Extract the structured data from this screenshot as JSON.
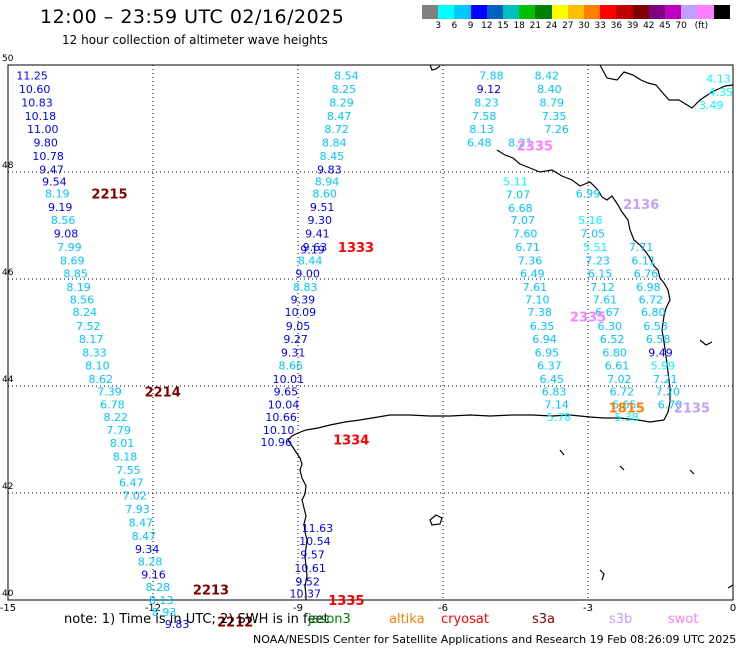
{
  "header": {
    "title": "12:00 – 23:59 UTC 02/16/2025",
    "subtitle": "12 hour collection of altimeter wave heights"
  },
  "colorbar": {
    "colors": [
      "#808080",
      "#00ffff",
      "#00c8ff",
      "#0000ff",
      "#0060c0",
      "#00c0c0",
      "#00c000",
      "#008000",
      "#ffff00",
      "#ffc000",
      "#ff8000",
      "#ff0000",
      "#c00000",
      "#800000",
      "#800080",
      "#c000c0",
      "#c0a0ff",
      "#ff80ff",
      "#000000"
    ],
    "labels": [
      "3",
      "6",
      "9",
      "12",
      "15",
      "18",
      "21",
      "24",
      "27",
      "30",
      "33",
      "36",
      "39",
      "42",
      "45",
      "70",
      "(ft)"
    ]
  },
  "axes": {
    "x_ticks": [
      "-15",
      "-12",
      "-9",
      "-6",
      "-3",
      "0"
    ],
    "y_ticks": [
      "50",
      "48",
      "46",
      "44",
      "42",
      "40"
    ]
  },
  "chart_data": {
    "type": "scatter",
    "x_range_lon": [
      -15,
      0
    ],
    "y_range_lat": [
      40,
      50
    ],
    "units": "ft",
    "grid": true,
    "tracks": [
      {
        "pass_id": "2215",
        "points": [
          {
            "lon": -14.5,
            "lat": 49.8,
            "v": "11.25"
          },
          {
            "lon": -14.45,
            "lat": 49.55,
            "v": "10.60"
          },
          {
            "lon": -14.4,
            "lat": 49.3,
            "v": "10.83"
          },
          {
            "lon": -14.33,
            "lat": 49.05,
            "v": "10.18"
          },
          {
            "lon": -14.28,
            "lat": 48.8,
            "v": "11.00"
          },
          {
            "lon": -14.22,
            "lat": 48.55,
            "v": "9.80"
          },
          {
            "lon": -14.17,
            "lat": 48.3,
            "v": "10.78"
          },
          {
            "lon": -14.1,
            "lat": 48.05,
            "v": "9.47"
          },
          {
            "lon": -14.04,
            "lat": 47.82,
            "v": "9.54"
          },
          {
            "lon": -13.98,
            "lat": 47.6,
            "v": "8.19"
          },
          {
            "lon": -13.92,
            "lat": 47.35,
            "v": "9.19"
          },
          {
            "lon": -13.86,
            "lat": 47.1,
            "v": "8.56"
          },
          {
            "lon": -13.8,
            "lat": 46.85,
            "v": "9.08"
          },
          {
            "lon": -13.73,
            "lat": 46.6,
            "v": "7.99"
          },
          {
            "lon": -13.67,
            "lat": 46.35,
            "v": "8.69"
          },
          {
            "lon": -13.6,
            "lat": 46.1,
            "v": "8.85"
          },
          {
            "lon": -13.54,
            "lat": 45.85,
            "v": "8.19"
          },
          {
            "lon": -13.47,
            "lat": 45.62,
            "v": "8.56"
          },
          {
            "lon": -13.41,
            "lat": 45.38,
            "v": "8.24"
          },
          {
            "lon": -13.34,
            "lat": 45.12,
            "v": "7.52"
          },
          {
            "lon": -13.28,
            "lat": 44.88,
            "v": "8.17"
          },
          {
            "lon": -13.21,
            "lat": 44.63,
            "v": "8.33"
          },
          {
            "lon": -13.15,
            "lat": 44.38,
            "v": "8.10"
          },
          {
            "lon": -13.08,
            "lat": 44.13,
            "v": "8.62"
          }
        ]
      },
      {
        "pass_id": "2214",
        "points": [
          {
            "lon": -12.9,
            "lat": 43.9,
            "v": "7.39"
          },
          {
            "lon": -12.84,
            "lat": 43.65,
            "v": "6.78"
          },
          {
            "lon": -12.77,
            "lat": 43.42,
            "v": "8.22"
          },
          {
            "lon": -12.71,
            "lat": 43.18,
            "v": "7.79"
          },
          {
            "lon": -12.64,
            "lat": 42.93,
            "v": "8.01"
          },
          {
            "lon": -12.58,
            "lat": 42.68,
            "v": "8.18"
          },
          {
            "lon": -12.51,
            "lat": 42.43,
            "v": "7.55"
          },
          {
            "lon": -12.45,
            "lat": 42.2,
            "v": "6.47"
          },
          {
            "lon": -12.38,
            "lat": 41.95,
            "v": "7.02"
          },
          {
            "lon": -12.32,
            "lat": 41.7,
            "v": "7.93"
          },
          {
            "lon": -12.25,
            "lat": 41.45,
            "v": "8.47"
          },
          {
            "lon": -12.19,
            "lat": 41.2,
            "v": "8.47"
          },
          {
            "lon": -12.12,
            "lat": 40.95,
            "v": "9.34"
          },
          {
            "lon": -12.06,
            "lat": 40.72,
            "v": "8.28"
          },
          {
            "lon": -11.99,
            "lat": 40.48,
            "v": "9.16"
          }
        ]
      },
      {
        "pass_id": "2213",
        "points": [
          {
            "lon": -11.9,
            "lat": 40.24,
            "v": "8.28"
          },
          {
            "lon": -11.83,
            "lat": 40.0,
            "v": "8.13"
          },
          {
            "lon": -11.77,
            "lat": 39.78,
            "v": "8.93"
          }
        ]
      },
      {
        "pass_id": "2212",
        "points": [
          {
            "lon": -11.5,
            "lat": 39.55,
            "v": "9.83"
          }
        ]
      },
      {
        "pass_id": "1333",
        "points": [
          {
            "lon": -8.0,
            "lat": 49.8,
            "v": "8.54"
          },
          {
            "lon": -8.05,
            "lat": 49.55,
            "v": "8.25"
          },
          {
            "lon": -8.1,
            "lat": 49.3,
            "v": "8.29"
          },
          {
            "lon": -8.15,
            "lat": 49.05,
            "v": "8.47"
          },
          {
            "lon": -8.2,
            "lat": 48.8,
            "v": "8.72"
          },
          {
            "lon": -8.25,
            "lat": 48.55,
            "v": "8.84"
          },
          {
            "lon": -8.3,
            "lat": 48.3,
            "v": "8.45"
          },
          {
            "lon": -8.35,
            "lat": 48.05,
            "v": "9.83"
          },
          {
            "lon": -8.4,
            "lat": 47.82,
            "v": "8.94"
          },
          {
            "lon": -8.45,
            "lat": 47.6,
            "v": "8.60"
          },
          {
            "lon": -8.5,
            "lat": 47.35,
            "v": "9.51"
          },
          {
            "lon": -8.55,
            "lat": 47.1,
            "v": "9.30"
          },
          {
            "lon": -8.6,
            "lat": 46.85,
            "v": "9.41"
          },
          {
            "lon": -8.65,
            "lat": 46.6,
            "v": "9.63"
          },
          {
            "lon": -8.7,
            "lat": 46.55,
            "v": "9.19"
          },
          {
            "lon": -8.75,
            "lat": 46.35,
            "v": "8.44"
          },
          {
            "lon": -8.8,
            "lat": 46.1,
            "v": "9.00"
          },
          {
            "lon": -8.85,
            "lat": 45.85,
            "v": "8.83"
          },
          {
            "lon": -8.9,
            "lat": 45.62,
            "v": "9.39"
          },
          {
            "lon": -8.95,
            "lat": 45.38,
            "v": "10.09"
          },
          {
            "lon": -9.0,
            "lat": 45.12,
            "v": "9.05"
          },
          {
            "lon": -9.05,
            "lat": 44.88,
            "v": "9.27"
          },
          {
            "lon": -9.1,
            "lat": 44.63,
            "v": "9.31"
          },
          {
            "lon": -9.15,
            "lat": 44.38,
            "v": "8.66"
          },
          {
            "lon": -9.2,
            "lat": 44.13,
            "v": "10.01"
          },
          {
            "lon": -9.25,
            "lat": 43.9,
            "v": "9.65"
          },
          {
            "lon": -9.3,
            "lat": 43.65,
            "v": "10.04"
          },
          {
            "lon": -9.35,
            "lat": 43.42,
            "v": "10.66"
          },
          {
            "lon": -9.4,
            "lat": 43.18,
            "v": "10.10"
          },
          {
            "lon": -9.45,
            "lat": 42.95,
            "v": "10.96"
          }
        ]
      },
      {
        "pass_id": "1334",
        "points": []
      },
      {
        "pass_id": "1335",
        "points": [
          {
            "lon": -8.6,
            "lat": 41.35,
            "v": "11.63"
          },
          {
            "lon": -8.65,
            "lat": 41.1,
            "v": "10.54"
          },
          {
            "lon": -8.7,
            "lat": 40.85,
            "v": "9.57"
          },
          {
            "lon": -8.75,
            "lat": 40.6,
            "v": "10.61"
          },
          {
            "lon": -8.8,
            "lat": 40.35,
            "v": "9.52"
          },
          {
            "lon": -8.85,
            "lat": 40.12,
            "v": "10.37"
          }
        ]
      },
      {
        "pass_id": "2335",
        "points": [
          {
            "lon": -5.0,
            "lat": 49.8,
            "v": "7.88"
          },
          {
            "lon": -5.05,
            "lat": 49.55,
            "v": "9.12"
          },
          {
            "lon": -5.1,
            "lat": 49.3,
            "v": "8.23"
          },
          {
            "lon": -5.15,
            "lat": 49.05,
            "v": "7.58"
          },
          {
            "lon": -5.2,
            "lat": 48.8,
            "v": "8.13"
          },
          {
            "lon": -5.25,
            "lat": 48.55,
            "v": "6.48"
          },
          {
            "lon": -3.85,
            "lat": 49.8,
            "v": "8.42"
          },
          {
            "lon": -3.8,
            "lat": 49.55,
            "v": "8.40"
          },
          {
            "lon": -3.75,
            "lat": 49.3,
            "v": "8.79"
          },
          {
            "lon": -3.7,
            "lat": 49.05,
            "v": "7.35"
          },
          {
            "lon": -3.65,
            "lat": 48.8,
            "v": "7.26"
          },
          {
            "lon": -4.4,
            "lat": 48.55,
            "v": "8.21"
          },
          {
            "lon": -4.5,
            "lat": 47.82,
            "v": "5.11"
          },
          {
            "lon": -4.45,
            "lat": 47.58,
            "v": "7.07"
          },
          {
            "lon": -4.4,
            "lat": 47.33,
            "v": "6.68"
          },
          {
            "lon": -4.35,
            "lat": 47.1,
            "v": "7.07"
          },
          {
            "lon": -4.3,
            "lat": 46.85,
            "v": "7.60"
          },
          {
            "lon": -4.25,
            "lat": 46.6,
            "v": "6.71"
          },
          {
            "lon": -4.2,
            "lat": 46.35,
            "v": "7.36"
          },
          {
            "lon": -4.15,
            "lat": 46.1,
            "v": "6.49"
          },
          {
            "lon": -4.1,
            "lat": 45.85,
            "v": "7.61"
          },
          {
            "lon": -4.05,
            "lat": 45.62,
            "v": "7.10"
          },
          {
            "lon": -4.0,
            "lat": 45.38,
            "v": "7.38"
          },
          {
            "lon": -3.95,
            "lat": 45.12,
            "v": "6.35"
          },
          {
            "lon": -3.9,
            "lat": 44.88,
            "v": "6.94"
          },
          {
            "lon": -3.85,
            "lat": 44.63,
            "v": "6.95"
          },
          {
            "lon": -3.8,
            "lat": 44.38,
            "v": "6.37"
          },
          {
            "lon": -3.75,
            "lat": 44.13,
            "v": "6.45"
          },
          {
            "lon": -3.7,
            "lat": 43.9,
            "v": "6.83"
          },
          {
            "lon": -3.65,
            "lat": 43.65,
            "v": "7.14"
          },
          {
            "lon": -3.6,
            "lat": 43.42,
            "v": "5.78"
          }
        ]
      },
      {
        "pass_id": "2136",
        "points": [
          {
            "lon": -3.0,
            "lat": 47.6,
            "v": "6.99"
          },
          {
            "lon": -2.95,
            "lat": 47.1,
            "v": "5.16"
          },
          {
            "lon": -2.9,
            "lat": 46.85,
            "v": "7.05"
          },
          {
            "lon": -2.85,
            "lat": 46.6,
            "v": "5.51"
          },
          {
            "lon": -2.8,
            "lat": 46.35,
            "v": "7.23"
          },
          {
            "lon": -2.75,
            "lat": 46.1,
            "v": "6.15"
          },
          {
            "lon": -2.7,
            "lat": 45.85,
            "v": "7.12"
          },
          {
            "lon": -2.65,
            "lat": 45.62,
            "v": "7.61"
          },
          {
            "lon": -2.6,
            "lat": 45.38,
            "v": "6.67"
          },
          {
            "lon": -2.55,
            "lat": 45.12,
            "v": "6.30"
          },
          {
            "lon": -2.5,
            "lat": 44.88,
            "v": "6.52"
          },
          {
            "lon": -2.45,
            "lat": 44.63,
            "v": "6.80"
          },
          {
            "lon": -2.4,
            "lat": 44.38,
            "v": "6.61"
          },
          {
            "lon": -2.35,
            "lat": 44.13,
            "v": "7.02"
          },
          {
            "lon": -2.3,
            "lat": 43.9,
            "v": "6.72"
          },
          {
            "lon": -2.25,
            "lat": 43.65,
            "v": "6.65"
          },
          {
            "lon": -2.2,
            "lat": 43.42,
            "v": "5.38"
          }
        ]
      },
      {
        "pass_id": "2135",
        "points": [
          {
            "lon": -1.9,
            "lat": 46.6,
            "v": "7.71"
          },
          {
            "lon": -1.85,
            "lat": 46.35,
            "v": "6.11"
          },
          {
            "lon": -1.8,
            "lat": 46.1,
            "v": "6.76"
          },
          {
            "lon": -1.75,
            "lat": 45.85,
            "v": "6.98"
          },
          {
            "lon": -1.7,
            "lat": 45.62,
            "v": "6.72"
          },
          {
            "lon": -1.65,
            "lat": 45.38,
            "v": "6.80"
          },
          {
            "lon": -1.6,
            "lat": 45.12,
            "v": "6.53"
          },
          {
            "lon": -1.55,
            "lat": 44.88,
            "v": "6.58"
          },
          {
            "lon": -1.5,
            "lat": 44.63,
            "v": "9.49"
          },
          {
            "lon": -1.45,
            "lat": 44.38,
            "v": "5.99"
          },
          {
            "lon": -1.4,
            "lat": 44.13,
            "v": "7.21"
          },
          {
            "lon": -1.35,
            "lat": 43.9,
            "v": "7.20"
          },
          {
            "lon": -1.3,
            "lat": 43.65,
            "v": "6.70"
          }
        ]
      },
      {
        "pass_id": "1815",
        "points": []
      },
      {
        "pass_id": "1333b",
        "points": [
          {
            "lon": -0.3,
            "lat": 49.75,
            "v": "4.13"
          },
          {
            "lon": -0.25,
            "lat": 49.5,
            "v": "4.35"
          },
          {
            "lon": -0.45,
            "lat": 49.25,
            "v": "3.49"
          }
        ]
      }
    ],
    "pass_labels": [
      {
        "text": "2215",
        "lon": -12.9,
        "lat": 47.6,
        "color": "#800000"
      },
      {
        "text": "2214",
        "lon": -11.8,
        "lat": 43.9,
        "color": "#800000"
      },
      {
        "text": "2213",
        "lon": -10.8,
        "lat": 40.2,
        "color": "#800000"
      },
      {
        "text": "2212",
        "lon": -10.3,
        "lat": 39.6,
        "color": "#800000"
      },
      {
        "text": "1333",
        "lon": -7.8,
        "lat": 46.6,
        "color": "#ff0000"
      },
      {
        "text": "1334",
        "lon": -7.9,
        "lat": 43.0,
        "color": "#ff0000"
      },
      {
        "text": "1335",
        "lon": -8.0,
        "lat": 40.0,
        "color": "#ff0000"
      },
      {
        "text": "2335",
        "lon": -4.1,
        "lat": 48.5,
        "color": "#ff80ff"
      },
      {
        "text": "2335",
        "lon": -3.0,
        "lat": 45.3,
        "color": "#ff80ff"
      },
      {
        "text": "2136",
        "lon": -1.9,
        "lat": 47.4,
        "color": "#c0a0ff"
      },
      {
        "text": "2135",
        "lon": -0.85,
        "lat": 43.6,
        "color": "#c0a0ff"
      },
      {
        "text": "1815",
        "lon": -2.2,
        "lat": 43.6,
        "color": "#ff8000"
      }
    ]
  },
  "footer": {
    "note_prefix": "note: 1) Time is in UTC; 2) SWH is in feet",
    "satellites": [
      {
        "name": "jason3",
        "color": "#008000"
      },
      {
        "name": "altika",
        "color": "#ff8000"
      },
      {
        "name": "cryosat",
        "color": "#ff0000"
      },
      {
        "name": "s3a",
        "color": "#800000"
      },
      {
        "name": "s3b",
        "color": "#c0a0ff"
      },
      {
        "name": "swot",
        "color": "#ff80ff"
      }
    ],
    "credit": "NOAA/NESDIS Center for Satellite Applications and Research     19 Feb 08:26:09 UTC 2025"
  }
}
